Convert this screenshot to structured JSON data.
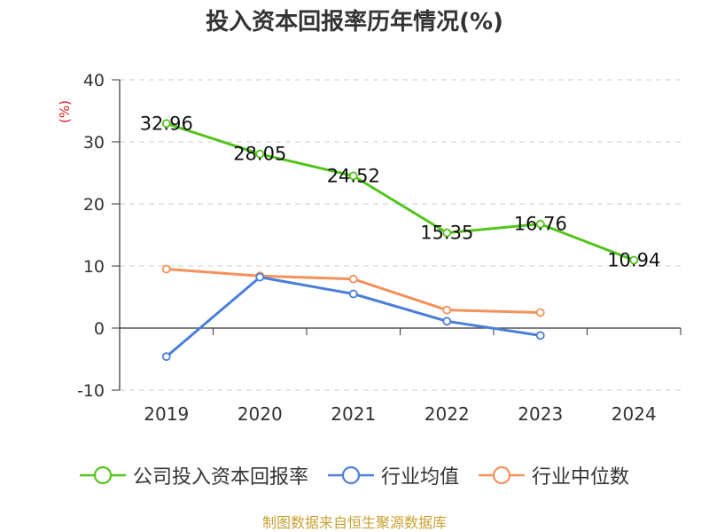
{
  "chart_data": {
    "type": "line",
    "title": "投入资本回报率历年情况(%)",
    "ylabel": "(%)",
    "xlabel": "",
    "ylim": [
      -10,
      40
    ],
    "yticks": [
      -10,
      0,
      10,
      20,
      30,
      40
    ],
    "categories": [
      "2019",
      "2020",
      "2021",
      "2022",
      "2023",
      "2024"
    ],
    "grid": true,
    "legend_position": "bottom",
    "series": [
      {
        "name": "公司投入资本回报率",
        "color": "#52c41a",
        "values": [
          32.96,
          28.05,
          24.52,
          15.35,
          16.76,
          10.94
        ],
        "data_labels": [
          "32.96",
          "28.05",
          "24.52",
          "15.35",
          "16.76",
          "10.94"
        ]
      },
      {
        "name": "行业均值",
        "color": "#4a7fd8",
        "values": [
          -4.6,
          8.2,
          5.5,
          1.1,
          -1.2,
          null
        ]
      },
      {
        "name": "行业中位数",
        "color": "#f4915a",
        "values": [
          9.5,
          8.4,
          7.9,
          2.9,
          2.5,
          null
        ]
      }
    ]
  },
  "source": "制图数据来自恒生聚源数据库"
}
